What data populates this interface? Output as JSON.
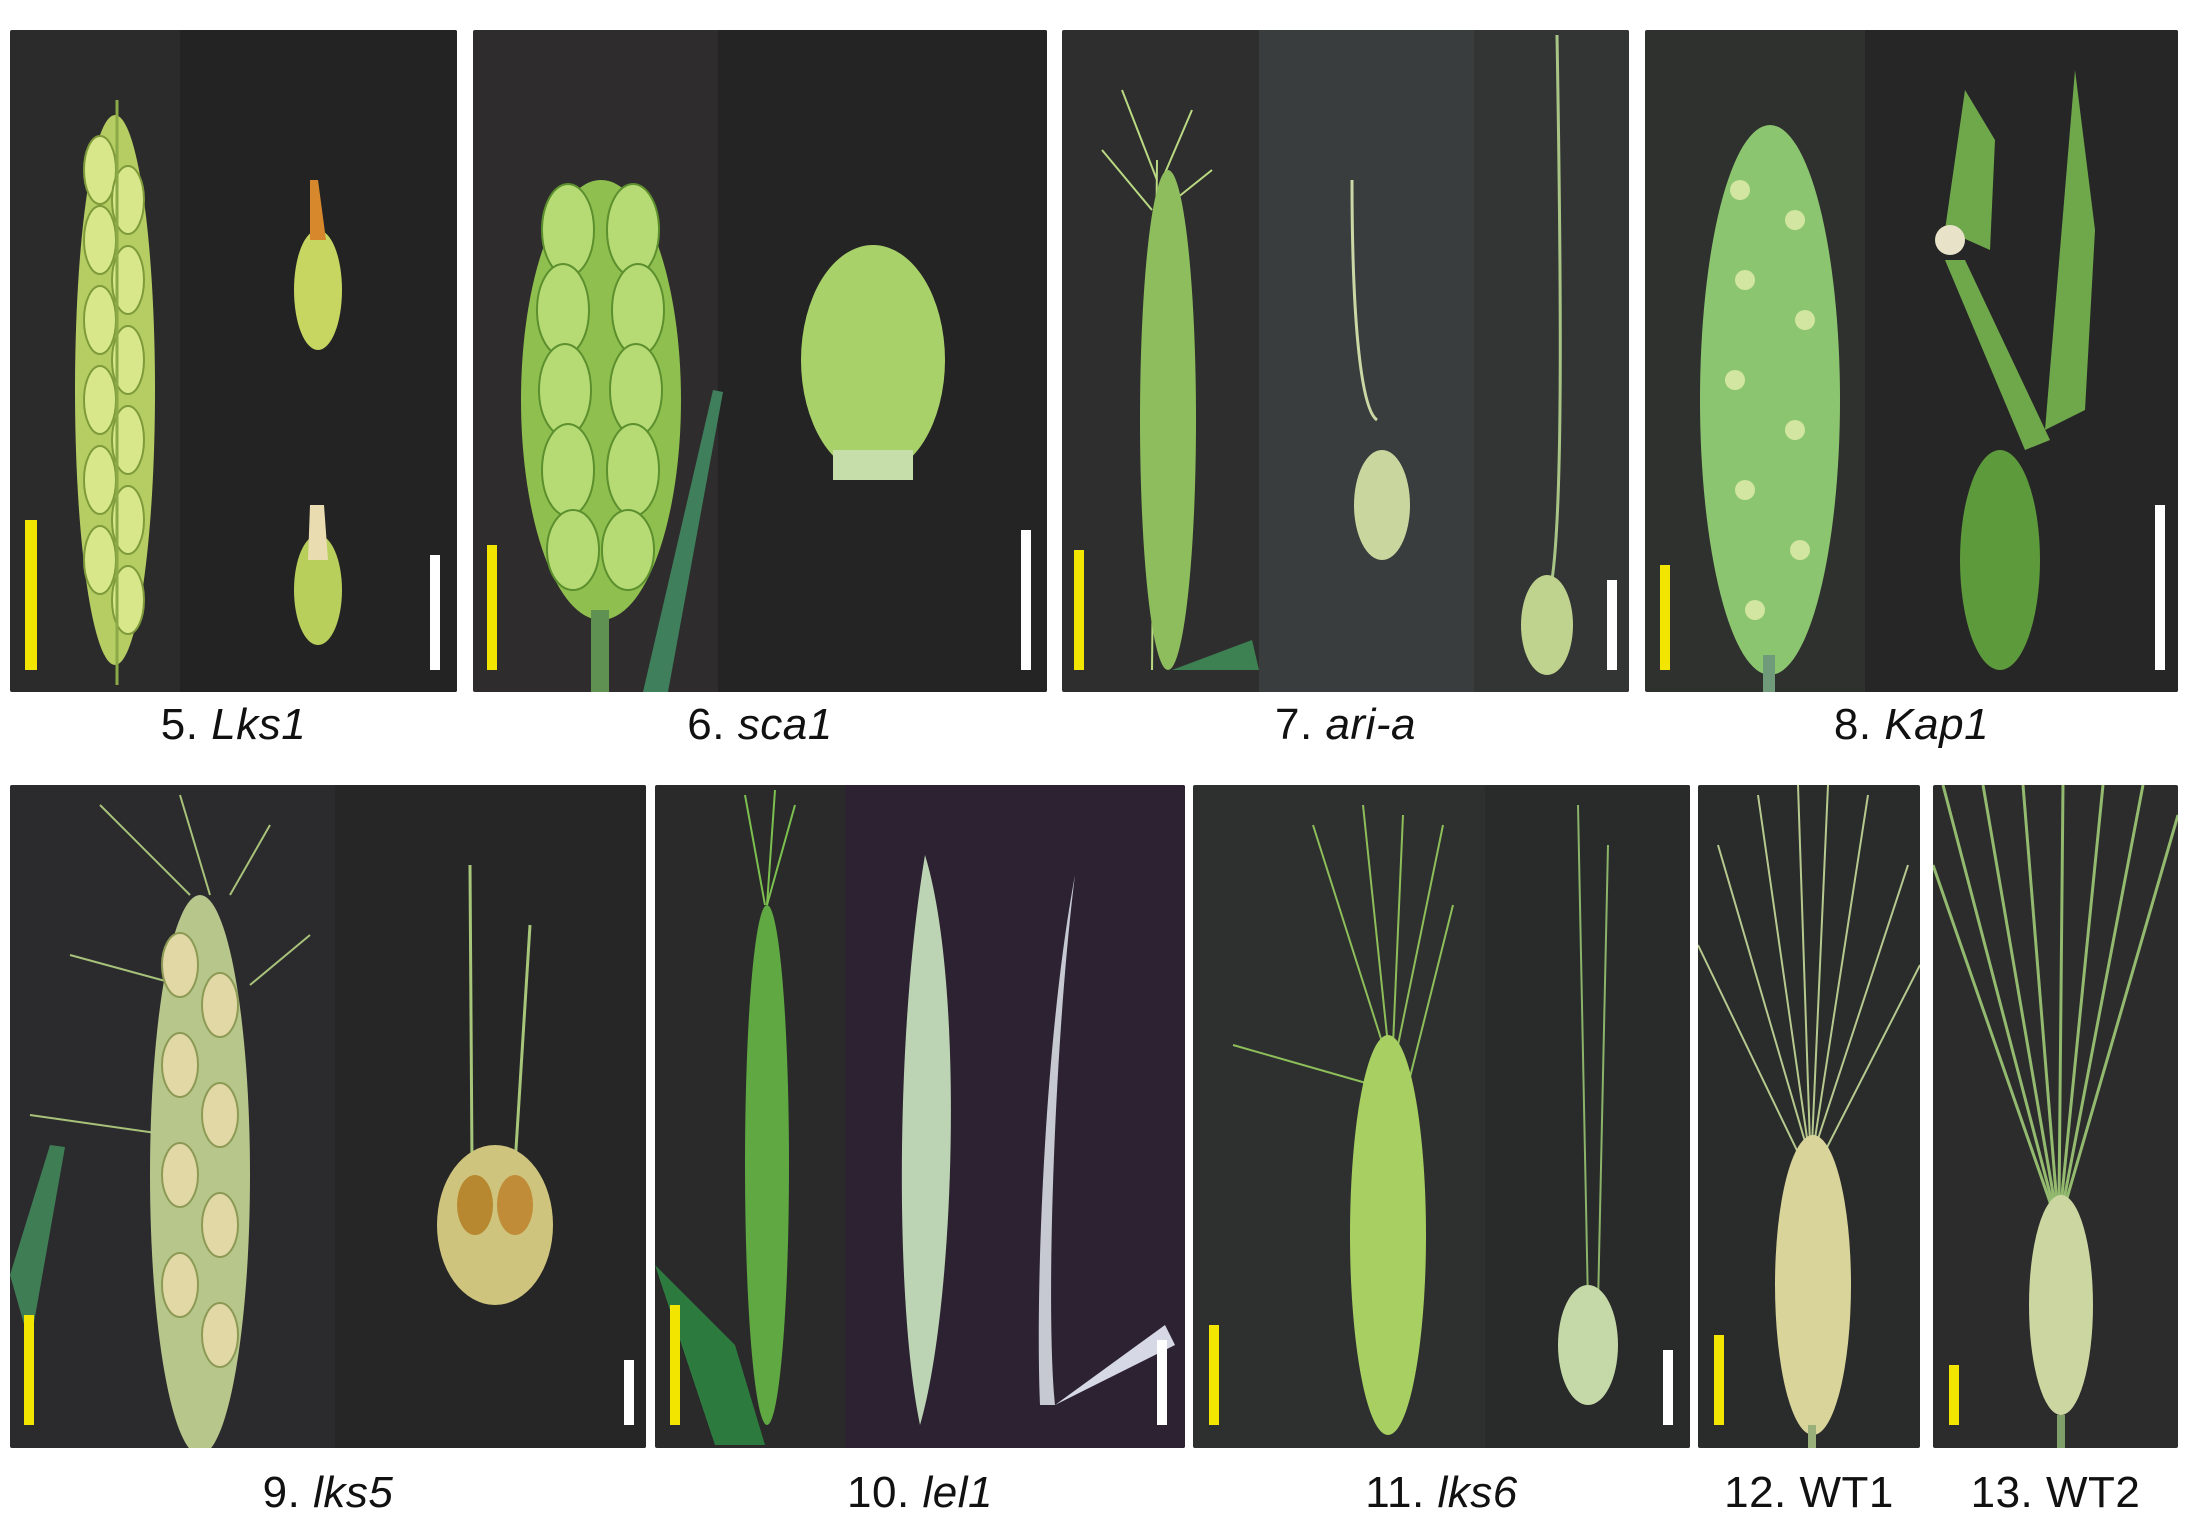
{
  "figure": {
    "panels": [
      {
        "id": "p5",
        "number": "5.",
        "gene": "Lks1",
        "italic": true
      },
      {
        "id": "p6",
        "number": "6.",
        "gene": "sca1",
        "italic": true
      },
      {
        "id": "p7",
        "number": "7.",
        "gene": "ari-a",
        "italic": true
      },
      {
        "id": "p8",
        "number": "8.",
        "gene": "Kap1",
        "italic": true
      },
      {
        "id": "p9",
        "number": "9.",
        "gene": "lks5",
        "italic": true
      },
      {
        "id": "p10",
        "number": "10.",
        "gene": "lel1",
        "italic": true
      },
      {
        "id": "p11",
        "number": "11.",
        "gene": "lks6",
        "italic": true
      },
      {
        "id": "p12",
        "number": "12.",
        "gene": "WT1",
        "italic": false
      },
      {
        "id": "p13",
        "number": "13.",
        "gene": "WT2",
        "italic": false
      }
    ],
    "colors": {
      "background_dark": "#232323",
      "background_purple": "#2a1f33",
      "spike_green": "#b9d46a",
      "spike_green_dark": "#6f9a3c",
      "awn_green": "#9cc04f",
      "leaf_green": "#3d7f5b",
      "scale_bar_yellow": "#f2e600",
      "scale_bar_white": "#ffffff"
    }
  }
}
